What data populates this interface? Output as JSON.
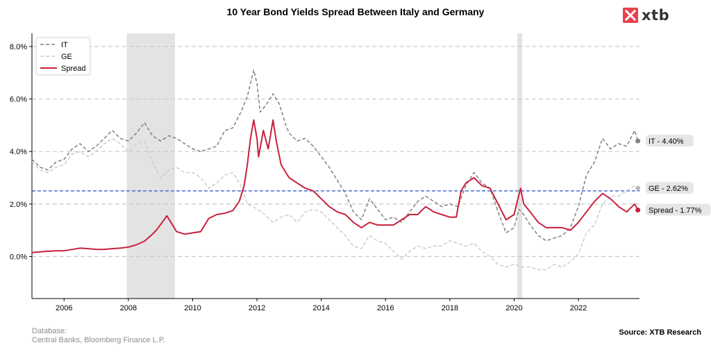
{
  "title": "10 Year Bond Yields Spread Between Italy and Germany",
  "brand": {
    "name": "xtb",
    "color": "#e8404c"
  },
  "footer": {
    "database_label": "Database:",
    "database_value": "Central Banks, Bloomberg Finance L.P.",
    "source": "Source: XTB Research"
  },
  "chart_data": {
    "type": "line",
    "title": "10 Year Bond Yields Spread Between Italy and Germany",
    "xlabel": "",
    "ylabel": "",
    "xlim": [
      2005.0,
      2023.9
    ],
    "ylim": [
      -1.6,
      8.5
    ],
    "x_ticks": [
      2006,
      2008,
      2010,
      2012,
      2014,
      2016,
      2018,
      2020,
      2022
    ],
    "y_ticks": [
      0,
      2,
      4,
      6,
      8
    ],
    "y_tick_labels": [
      "0.0%",
      "2.0%",
      "4.0%",
      "6.0%",
      "8.0%"
    ],
    "grid": "horizontal dashed",
    "legend_position": "top-left",
    "reference_line": {
      "y": 2.5,
      "color": "#3a5fcd",
      "style": "dashed"
    },
    "shaded_periods": [
      {
        "start": 2007.95,
        "end": 2009.45
      },
      {
        "start": 2020.1,
        "end": 2020.25
      }
    ],
    "series": [
      {
        "name": "IT",
        "color": "#808080",
        "style": "dashed",
        "width": 1.5,
        "end_label": "IT - 4.40%",
        "x": [
          2005.0,
          2005.25,
          2005.5,
          2005.75,
          2006.0,
          2006.25,
          2006.5,
          2006.75,
          2007.0,
          2007.25,
          2007.5,
          2007.75,
          2008.0,
          2008.25,
          2008.5,
          2008.75,
          2009.0,
          2009.25,
          2009.5,
          2009.75,
          2010.0,
          2010.25,
          2010.5,
          2010.75,
          2011.0,
          2011.25,
          2011.5,
          2011.7,
          2011.9,
          2012.0,
          2012.1,
          2012.3,
          2012.5,
          2012.7,
          2012.9,
          2013.0,
          2013.25,
          2013.5,
          2013.75,
          2014.0,
          2014.25,
          2014.5,
          2014.75,
          2015.0,
          2015.25,
          2015.5,
          2015.75,
          2016.0,
          2016.25,
          2016.5,
          2016.75,
          2017.0,
          2017.25,
          2017.5,
          2017.75,
          2018.0,
          2018.25,
          2018.5,
          2018.75,
          2019.0,
          2019.25,
          2019.5,
          2019.75,
          2020.0,
          2020.15,
          2020.3,
          2020.5,
          2020.75,
          2021.0,
          2021.25,
          2021.5,
          2021.75,
          2022.0,
          2022.25,
          2022.5,
          2022.75,
          2023.0,
          2023.25,
          2023.5,
          2023.75,
          2023.85
        ],
        "values": [
          3.7,
          3.4,
          3.3,
          3.6,
          3.7,
          4.1,
          4.3,
          4.0,
          4.2,
          4.5,
          4.8,
          4.5,
          4.4,
          4.7,
          5.1,
          4.6,
          4.4,
          4.6,
          4.5,
          4.3,
          4.1,
          4.0,
          4.1,
          4.2,
          4.8,
          4.9,
          5.5,
          6.1,
          7.1,
          6.6,
          5.5,
          5.8,
          6.2,
          5.8,
          5.0,
          4.7,
          4.4,
          4.5,
          4.2,
          3.8,
          3.4,
          2.9,
          2.4,
          1.7,
          1.4,
          2.2,
          1.8,
          1.4,
          1.5,
          1.3,
          1.7,
          2.1,
          2.3,
          2.1,
          1.9,
          2.0,
          1.9,
          2.7,
          3.2,
          2.8,
          2.6,
          1.7,
          0.9,
          1.1,
          1.8,
          1.6,
          1.2,
          0.8,
          0.6,
          0.7,
          0.8,
          1.1,
          1.9,
          3.1,
          3.6,
          4.5,
          4.1,
          4.3,
          4.2,
          4.8,
          4.4
        ]
      },
      {
        "name": "GE",
        "color": "#cccccc",
        "style": "dashed",
        "width": 1.5,
        "end_label": "GE - 2.62%",
        "x": [
          2005.0,
          2005.25,
          2005.5,
          2005.75,
          2006.0,
          2006.25,
          2006.5,
          2006.75,
          2007.0,
          2007.25,
          2007.5,
          2007.75,
          2008.0,
          2008.25,
          2008.5,
          2008.75,
          2009.0,
          2009.25,
          2009.5,
          2009.75,
          2010.0,
          2010.25,
          2010.5,
          2010.75,
          2011.0,
          2011.25,
          2011.5,
          2011.7,
          2011.9,
          2012.0,
          2012.25,
          2012.5,
          2012.75,
          2013.0,
          2013.25,
          2013.5,
          2013.75,
          2014.0,
          2014.25,
          2014.5,
          2014.75,
          2015.0,
          2015.25,
          2015.5,
          2015.75,
          2016.0,
          2016.25,
          2016.5,
          2016.75,
          2017.0,
          2017.25,
          2017.5,
          2017.75,
          2018.0,
          2018.25,
          2018.5,
          2018.75,
          2019.0,
          2019.25,
          2019.5,
          2019.75,
          2020.0,
          2020.25,
          2020.5,
          2020.75,
          2021.0,
          2021.25,
          2021.5,
          2021.75,
          2022.0,
          2022.25,
          2022.5,
          2022.75,
          2023.0,
          2023.25,
          2023.5,
          2023.75,
          2023.85
        ],
        "values": [
          3.6,
          3.3,
          3.2,
          3.4,
          3.5,
          3.9,
          4.0,
          3.8,
          4.0,
          4.3,
          4.5,
          4.3,
          4.0,
          4.3,
          4.4,
          3.6,
          3.0,
          3.3,
          3.4,
          3.2,
          3.2,
          3.0,
          2.6,
          2.8,
          3.1,
          3.2,
          2.7,
          2.0,
          1.9,
          1.8,
          1.6,
          1.3,
          1.5,
          1.6,
          1.3,
          1.7,
          1.8,
          1.7,
          1.4,
          1.1,
          0.8,
          0.4,
          0.3,
          0.8,
          0.6,
          0.5,
          0.2,
          -0.1,
          0.2,
          0.4,
          0.3,
          0.4,
          0.4,
          0.6,
          0.5,
          0.4,
          0.5,
          0.2,
          0.0,
          -0.3,
          -0.4,
          -0.3,
          -0.4,
          -0.4,
          -0.5,
          -0.5,
          -0.3,
          -0.4,
          -0.2,
          0.1,
          0.9,
          1.2,
          2.0,
          2.3,
          2.3,
          2.5,
          2.7,
          2.6
        ]
      },
      {
        "name": "Spread",
        "color": "#c8203c",
        "style": "solid",
        "width": 2,
        "end_label": "Spread - 1.77%",
        "x": [
          2005.0,
          2005.25,
          2005.5,
          2005.75,
          2006.0,
          2006.25,
          2006.5,
          2006.75,
          2007.0,
          2007.25,
          2007.5,
          2007.75,
          2008.0,
          2008.25,
          2008.5,
          2008.75,
          2008.9,
          2009.05,
          2009.2,
          2009.35,
          2009.5,
          2009.75,
          2010.0,
          2010.25,
          2010.4,
          2010.5,
          2010.75,
          2011.0,
          2011.25,
          2011.45,
          2011.6,
          2011.7,
          2011.8,
          2011.9,
          2012.0,
          2012.05,
          2012.2,
          2012.35,
          2012.5,
          2012.6,
          2012.75,
          2012.9,
          2013.0,
          2013.25,
          2013.5,
          2013.75,
          2014.0,
          2014.25,
          2014.5,
          2014.75,
          2015.0,
          2015.25,
          2015.5,
          2015.75,
          2016.0,
          2016.25,
          2016.5,
          2016.75,
          2017.0,
          2017.25,
          2017.5,
          2017.75,
          2018.0,
          2018.2,
          2018.35,
          2018.5,
          2018.75,
          2019.0,
          2019.25,
          2019.5,
          2019.75,
          2020.0,
          2020.2,
          2020.3,
          2020.5,
          2020.75,
          2021.0,
          2021.25,
          2021.5,
          2021.75,
          2022.0,
          2022.25,
          2022.5,
          2022.75,
          2023.0,
          2023.25,
          2023.5,
          2023.75,
          2023.85
        ],
        "values": [
          0.15,
          0.18,
          0.2,
          0.22,
          0.22,
          0.27,
          0.32,
          0.3,
          0.27,
          0.27,
          0.3,
          0.32,
          0.36,
          0.45,
          0.58,
          0.85,
          1.05,
          1.3,
          1.55,
          1.25,
          0.95,
          0.85,
          0.9,
          0.95,
          1.25,
          1.45,
          1.6,
          1.65,
          1.75,
          2.1,
          2.7,
          3.5,
          4.5,
          5.2,
          4.5,
          3.8,
          4.8,
          4.1,
          5.2,
          4.4,
          3.5,
          3.2,
          3.0,
          2.8,
          2.6,
          2.5,
          2.2,
          1.9,
          1.7,
          1.6,
          1.3,
          1.1,
          1.3,
          1.2,
          1.2,
          1.2,
          1.4,
          1.6,
          1.6,
          1.9,
          1.7,
          1.6,
          1.5,
          1.5,
          2.5,
          2.8,
          3.0,
          2.7,
          2.6,
          2.0,
          1.4,
          1.6,
          2.6,
          2.0,
          1.7,
          1.3,
          1.1,
          1.1,
          1.1,
          1.0,
          1.3,
          1.7,
          2.1,
          2.4,
          2.2,
          1.9,
          1.7,
          2.0,
          1.77
        ]
      }
    ]
  }
}
